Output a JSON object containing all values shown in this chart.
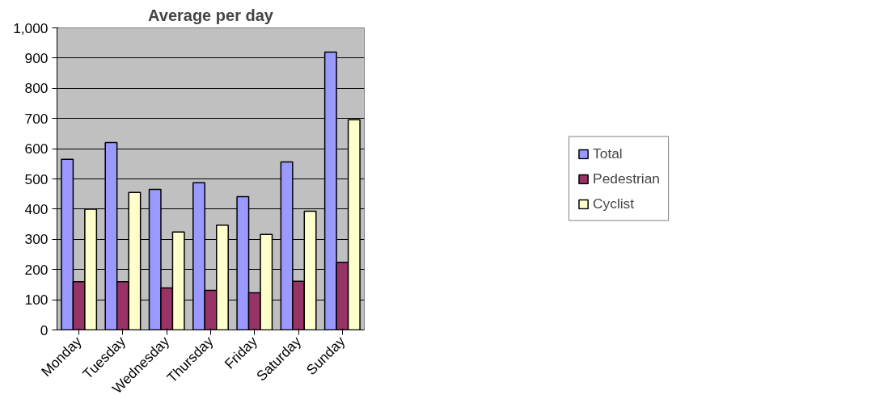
{
  "chart_data": {
    "type": "bar",
    "title": "Average per day",
    "categories": [
      "Monday",
      "Tuesday",
      "Wednesday",
      "Thursday",
      "Friday",
      "Saturday",
      "Sunday"
    ],
    "series": [
      {
        "name": "Total",
        "color": "#9999ff",
        "values": [
          565,
          620,
          465,
          487,
          441,
          556,
          920
        ]
      },
      {
        "name": "Pedestrian",
        "color": "#993366",
        "values": [
          160,
          160,
          139,
          131,
          123,
          161,
          224
        ]
      },
      {
        "name": "Cyclist",
        "color": "#ffffcc",
        "values": [
          400,
          455,
          324,
          347,
          316,
          393,
          696
        ]
      }
    ],
    "ylim": [
      0,
      1000
    ],
    "yticks": [
      0,
      100,
      200,
      300,
      400,
      500,
      600,
      700,
      800,
      900,
      {
        "value": 1000,
        "label": "1,000"
      }
    ],
    "grid": "y",
    "legend": "right"
  }
}
